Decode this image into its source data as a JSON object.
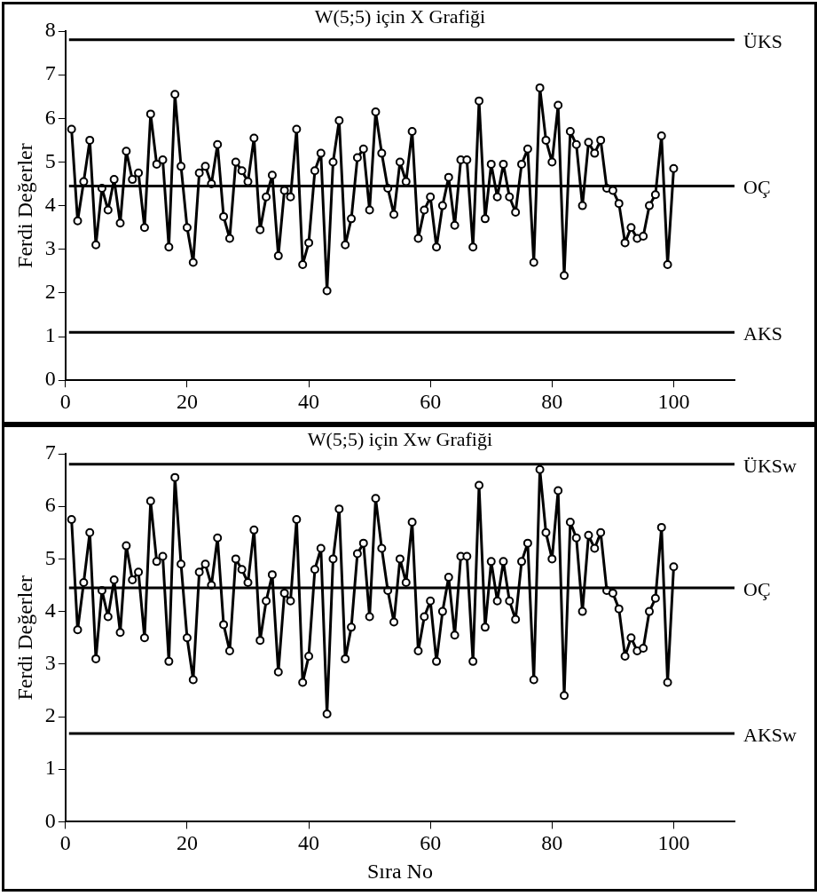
{
  "chart_data": [
    {
      "type": "line",
      "title": "W(5;5) için X Grafiği",
      "ylabel": "Ferdi Değerler",
      "x": [
        1,
        2,
        3,
        4,
        5,
        6,
        7,
        8,
        9,
        10,
        11,
        12,
        13,
        14,
        15,
        16,
        17,
        18,
        19,
        20,
        21,
        22,
        23,
        24,
        25,
        26,
        27,
        28,
        29,
        30,
        31,
        32,
        33,
        34,
        35,
        36,
        37,
        38,
        39,
        40,
        41,
        42,
        43,
        44,
        45,
        46,
        47,
        48,
        49,
        50,
        51,
        52,
        53,
        54,
        55,
        56,
        57,
        58,
        59,
        60,
        61,
        62,
        63,
        64,
        65,
        66,
        67,
        68,
        69,
        70,
        71,
        72,
        73,
        74,
        75,
        76,
        77,
        78,
        79,
        80,
        81,
        82,
        83,
        84,
        85,
        86,
        87,
        88,
        89,
        90,
        91,
        92,
        93,
        94,
        95,
        96,
        97,
        98,
        99,
        100
      ],
      "series": [
        {
          "color": "#000000",
          "values": [
            5.75,
            3.65,
            4.55,
            5.5,
            3.1,
            4.4,
            3.9,
            4.6,
            3.6,
            5.25,
            4.6,
            4.75,
            3.5,
            6.1,
            4.95,
            5.05,
            3.05,
            6.55,
            4.9,
            3.5,
            2.7,
            4.75,
            4.9,
            4.5,
            5.4,
            3.75,
            3.25,
            5.0,
            4.8,
            4.55,
            5.55,
            3.45,
            4.2,
            4.7,
            2.85,
            4.35,
            4.2,
            5.75,
            2.65,
            3.15,
            4.8,
            5.2,
            2.05,
            5.0,
            5.95,
            3.1,
            3.7,
            5.1,
            5.3,
            3.9,
            6.15,
            5.2,
            4.4,
            3.8,
            5.0,
            4.55,
            5.7,
            3.25,
            3.9,
            4.2,
            3.05,
            4.0,
            4.65,
            3.55,
            5.05,
            5.05,
            3.05,
            6.4,
            3.7,
            4.95,
            4.2,
            4.95,
            4.2,
            3.85,
            4.95,
            5.3,
            2.7,
            6.7,
            5.5,
            5.0,
            6.3,
            2.4,
            5.7,
            5.4,
            4.0,
            5.45,
            5.2,
            5.5,
            4.4,
            4.35,
            4.05,
            3.15,
            3.5,
            3.25,
            3.3,
            4.0,
            4.25,
            5.6,
            2.65,
            4.85
          ]
        }
      ],
      "xlim": [
        0,
        110
      ],
      "xticks": [
        0,
        20,
        40,
        60,
        80,
        100
      ],
      "ylim": [
        0,
        8
      ],
      "yticks": [
        0,
        1,
        2,
        3,
        4,
        5,
        6,
        7,
        8
      ],
      "ref_lines": [
        {
          "axis": "y",
          "value": 7.8,
          "label": "ÜKS"
        },
        {
          "axis": "y",
          "value": 4.45,
          "label": "OÇ"
        },
        {
          "axis": "y",
          "value": 1.1,
          "label": "AKS"
        }
      ],
      "grid": false,
      "legend": false,
      "marker": "circle",
      "line_style": "solid"
    },
    {
      "type": "line",
      "title": "W(5;5) için Xw Grafiği",
      "xlabel": "Sıra No",
      "ylabel": "Ferdi Değerler",
      "x": [
        1,
        2,
        3,
        4,
        5,
        6,
        7,
        8,
        9,
        10,
        11,
        12,
        13,
        14,
        15,
        16,
        17,
        18,
        19,
        20,
        21,
        22,
        23,
        24,
        25,
        26,
        27,
        28,
        29,
        30,
        31,
        32,
        33,
        34,
        35,
        36,
        37,
        38,
        39,
        40,
        41,
        42,
        43,
        44,
        45,
        46,
        47,
        48,
        49,
        50,
        51,
        52,
        53,
        54,
        55,
        56,
        57,
        58,
        59,
        60,
        61,
        62,
        63,
        64,
        65,
        66,
        67,
        68,
        69,
        70,
        71,
        72,
        73,
        74,
        75,
        76,
        77,
        78,
        79,
        80,
        81,
        82,
        83,
        84,
        85,
        86,
        87,
        88,
        89,
        90,
        91,
        92,
        93,
        94,
        95,
        96,
        97,
        98,
        99,
        100
      ],
      "series": [
        {
          "color": "#000000",
          "values": [
            5.75,
            3.65,
            4.55,
            5.5,
            3.1,
            4.4,
            3.9,
            4.6,
            3.6,
            5.25,
            4.6,
            4.75,
            3.5,
            6.1,
            4.95,
            5.05,
            3.05,
            6.55,
            4.9,
            3.5,
            2.7,
            4.75,
            4.9,
            4.5,
            5.4,
            3.75,
            3.25,
            5.0,
            4.8,
            4.55,
            5.55,
            3.45,
            4.2,
            4.7,
            2.85,
            4.35,
            4.2,
            5.75,
            2.65,
            3.15,
            4.8,
            5.2,
            2.05,
            5.0,
            5.95,
            3.1,
            3.7,
            5.1,
            5.3,
            3.9,
            6.15,
            5.2,
            4.4,
            3.8,
            5.0,
            4.55,
            5.7,
            3.25,
            3.9,
            4.2,
            3.05,
            4.0,
            4.65,
            3.55,
            5.05,
            5.05,
            3.05,
            6.4,
            3.7,
            4.95,
            4.2,
            4.95,
            4.2,
            3.85,
            4.95,
            5.3,
            2.7,
            6.7,
            5.5,
            5.0,
            6.3,
            2.4,
            5.7,
            5.4,
            4.0,
            5.45,
            5.2,
            5.5,
            4.4,
            4.35,
            4.05,
            3.15,
            3.5,
            3.25,
            3.3,
            4.0,
            4.25,
            5.6,
            2.65,
            4.85
          ]
        }
      ],
      "xlim": [
        0,
        110
      ],
      "xticks": [
        0,
        20,
        40,
        60,
        80,
        100
      ],
      "ylim": [
        0,
        7
      ],
      "yticks": [
        0,
        1,
        2,
        3,
        4,
        5,
        6,
        7
      ],
      "ref_lines": [
        {
          "axis": "y",
          "value": 6.8,
          "label": "ÜKSw"
        },
        {
          "axis": "y",
          "value": 4.45,
          "label": "OÇ"
        },
        {
          "axis": "y",
          "value": 1.68,
          "label": "AKSw"
        }
      ],
      "grid": false,
      "legend": false,
      "marker": "circle",
      "line_style": "solid"
    }
  ]
}
